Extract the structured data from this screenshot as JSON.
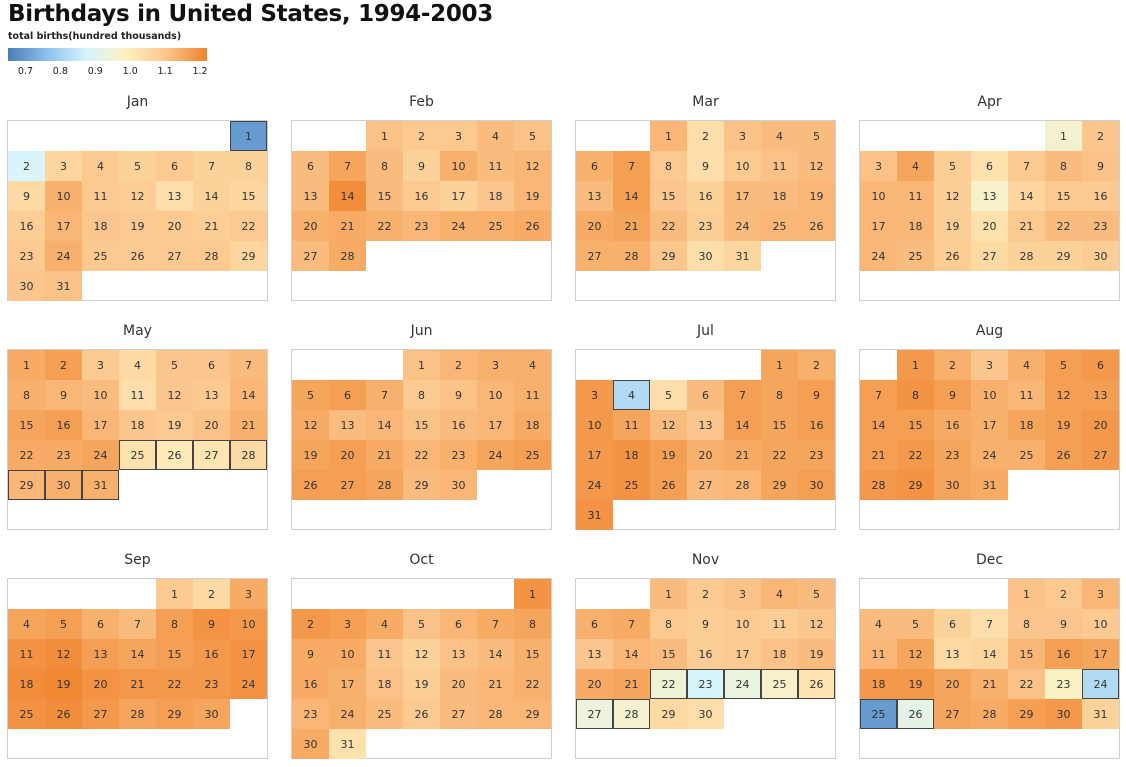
{
  "title": "Birthdays in United States, 1994-2003",
  "legend": {
    "title": "total births(hundred thousands)",
    "ticks": [
      "0.7",
      "0.8",
      "0.9",
      "1.0",
      "1.1",
      "1.2"
    ],
    "range": [
      0.65,
      1.22
    ],
    "colors": [
      "#4a7db8",
      "#8ec2ec",
      "#d6f5fc",
      "#fff0bf",
      "#fbc48a",
      "#f0822a"
    ]
  },
  "chart_data": {
    "type": "heatmap",
    "title": "Birthdays in United States, 1994-2003",
    "value_label": "total births(hundred thousands)",
    "color_range": [
      0.65,
      1.22
    ],
    "highlight_color": "#444444",
    "months": [
      {
        "name": "Jan",
        "first_weekday": 6,
        "values": [
          0.7,
          0.88,
          1.06,
          1.09,
          1.07,
          1.09,
          1.07,
          1.07,
          1.05,
          1.14,
          1.09,
          1.08,
          1.04,
          1.07,
          1.06,
          1.08,
          1.13,
          1.1,
          1.09,
          1.09,
          1.08,
          1.09,
          1.09,
          1.14,
          1.09,
          1.09,
          1.09,
          1.09,
          1.06,
          1.1,
          1.11
        ],
        "highlight": [
          1
        ]
      },
      {
        "name": "Feb",
        "first_weekday": 2,
        "values": [
          1.11,
          1.09,
          1.09,
          1.12,
          1.11,
          1.12,
          1.16,
          1.12,
          1.07,
          1.14,
          1.12,
          1.13,
          1.12,
          1.2,
          1.12,
          1.09,
          1.07,
          1.1,
          1.13,
          1.14,
          1.15,
          1.14,
          1.13,
          1.14,
          1.14,
          1.15,
          1.12,
          1.15
        ],
        "highlight": []
      },
      {
        "name": "Mar",
        "first_weekday": 2,
        "values": [
          1.13,
          1.04,
          1.11,
          1.12,
          1.12,
          1.14,
          1.17,
          1.09,
          1.04,
          1.09,
          1.11,
          1.12,
          1.12,
          1.17,
          1.1,
          1.07,
          1.12,
          1.12,
          1.13,
          1.15,
          1.16,
          1.12,
          1.08,
          1.12,
          1.13,
          1.13,
          1.14,
          1.14,
          1.1,
          1.04,
          1.06
        ],
        "highlight": []
      },
      {
        "name": "Apr",
        "first_weekday": 5,
        "values": [
          0.96,
          1.1,
          1.11,
          1.16,
          1.08,
          1.03,
          1.09,
          1.12,
          1.11,
          1.13,
          1.13,
          1.08,
          0.97,
          1.06,
          1.09,
          1.09,
          1.13,
          1.13,
          1.08,
          1.03,
          1.09,
          1.12,
          1.12,
          1.13,
          1.12,
          1.08,
          1.05,
          1.07,
          1.07,
          1.08
        ],
        "highlight": []
      },
      {
        "name": "May",
        "first_weekday": 0,
        "values": [
          1.15,
          1.17,
          1.09,
          1.05,
          1.1,
          1.1,
          1.12,
          1.14,
          1.13,
          1.12,
          1.04,
          1.1,
          1.09,
          1.13,
          1.16,
          1.17,
          1.13,
          1.1,
          1.09,
          1.11,
          1.14,
          1.15,
          1.15,
          1.16,
          1.03,
          1.01,
          1.02,
          1.05,
          1.13,
          1.14,
          1.14
        ],
        "highlight": [
          25,
          26,
          27,
          28,
          29,
          30,
          31
        ]
      },
      {
        "name": "Jun",
        "first_weekday": 3,
        "values": [
          1.11,
          1.13,
          1.14,
          1.14,
          1.16,
          1.17,
          1.14,
          1.09,
          1.11,
          1.13,
          1.14,
          1.15,
          1.12,
          1.13,
          1.11,
          1.12,
          1.13,
          1.15,
          1.16,
          1.17,
          1.15,
          1.13,
          1.14,
          1.16,
          1.17,
          1.17,
          1.17,
          1.16,
          1.12,
          1.13
        ],
        "highlight": []
      },
      {
        "name": "Jul",
        "first_weekday": 5,
        "values": [
          1.16,
          1.14,
          1.18,
          0.82,
          1.04,
          1.12,
          1.17,
          1.16,
          1.17,
          1.18,
          1.16,
          1.12,
          1.1,
          1.17,
          1.16,
          1.17,
          1.18,
          1.19,
          1.17,
          1.14,
          1.15,
          1.16,
          1.16,
          1.18,
          1.19,
          1.17,
          1.12,
          1.13,
          1.16,
          1.17,
          1.19
        ],
        "highlight": [
          4
        ]
      },
      {
        "name": "Aug",
        "first_weekday": 1,
        "values": [
          1.18,
          1.14,
          1.1,
          1.14,
          1.17,
          1.18,
          1.17,
          1.19,
          1.17,
          1.14,
          1.13,
          1.17,
          1.17,
          1.17,
          1.17,
          1.15,
          1.14,
          1.16,
          1.17,
          1.18,
          1.17,
          1.18,
          1.16,
          1.14,
          1.14,
          1.17,
          1.18,
          1.18,
          1.19,
          1.16,
          1.15
        ],
        "highlight": []
      },
      {
        "name": "Sep",
        "first_weekday": 4,
        "values": [
          1.09,
          1.05,
          1.15,
          1.16,
          1.17,
          1.14,
          1.12,
          1.17,
          1.19,
          1.18,
          1.19,
          1.2,
          1.17,
          1.16,
          1.17,
          1.18,
          1.19,
          1.2,
          1.21,
          1.19,
          1.18,
          1.18,
          1.18,
          1.19,
          1.19,
          1.2,
          1.18,
          1.16,
          1.17,
          1.16
        ],
        "highlight": []
      },
      {
        "name": "Oct",
        "first_weekday": 6,
        "values": [
          1.19,
          1.18,
          1.17,
          1.15,
          1.11,
          1.13,
          1.15,
          1.16,
          1.15,
          1.15,
          1.1,
          1.07,
          1.11,
          1.12,
          1.14,
          1.15,
          1.14,
          1.11,
          1.08,
          1.12,
          1.13,
          1.14,
          1.13,
          1.14,
          1.12,
          1.09,
          1.12,
          1.13,
          1.13,
          1.15,
          1.03
        ],
        "highlight": []
      },
      {
        "name": "Nov",
        "first_weekday": 2,
        "values": [
          1.12,
          1.09,
          1.11,
          1.13,
          1.12,
          1.14,
          1.15,
          1.09,
          1.08,
          1.09,
          1.08,
          1.1,
          1.1,
          1.13,
          1.12,
          1.08,
          1.09,
          1.11,
          1.12,
          1.15,
          1.16,
          0.95,
          0.88,
          0.93,
          0.97,
          1.02,
          0.94,
          0.96,
          1.05,
          1.04
        ],
        "highlight": [
          22,
          23,
          24,
          25,
          26,
          27,
          28
        ]
      },
      {
        "name": "Dec",
        "first_weekday": 4,
        "values": [
          1.11,
          1.09,
          1.13,
          1.12,
          1.12,
          1.07,
          1.04,
          1.1,
          1.1,
          1.09,
          1.13,
          1.16,
          1.05,
          1.06,
          1.13,
          1.17,
          1.16,
          1.18,
          1.18,
          1.16,
          1.14,
          1.11,
          0.98,
          0.82,
          0.7,
          0.92,
          1.16,
          1.15,
          1.17,
          1.18,
          1.07
        ],
        "highlight": [
          24,
          25,
          26
        ]
      }
    ]
  }
}
